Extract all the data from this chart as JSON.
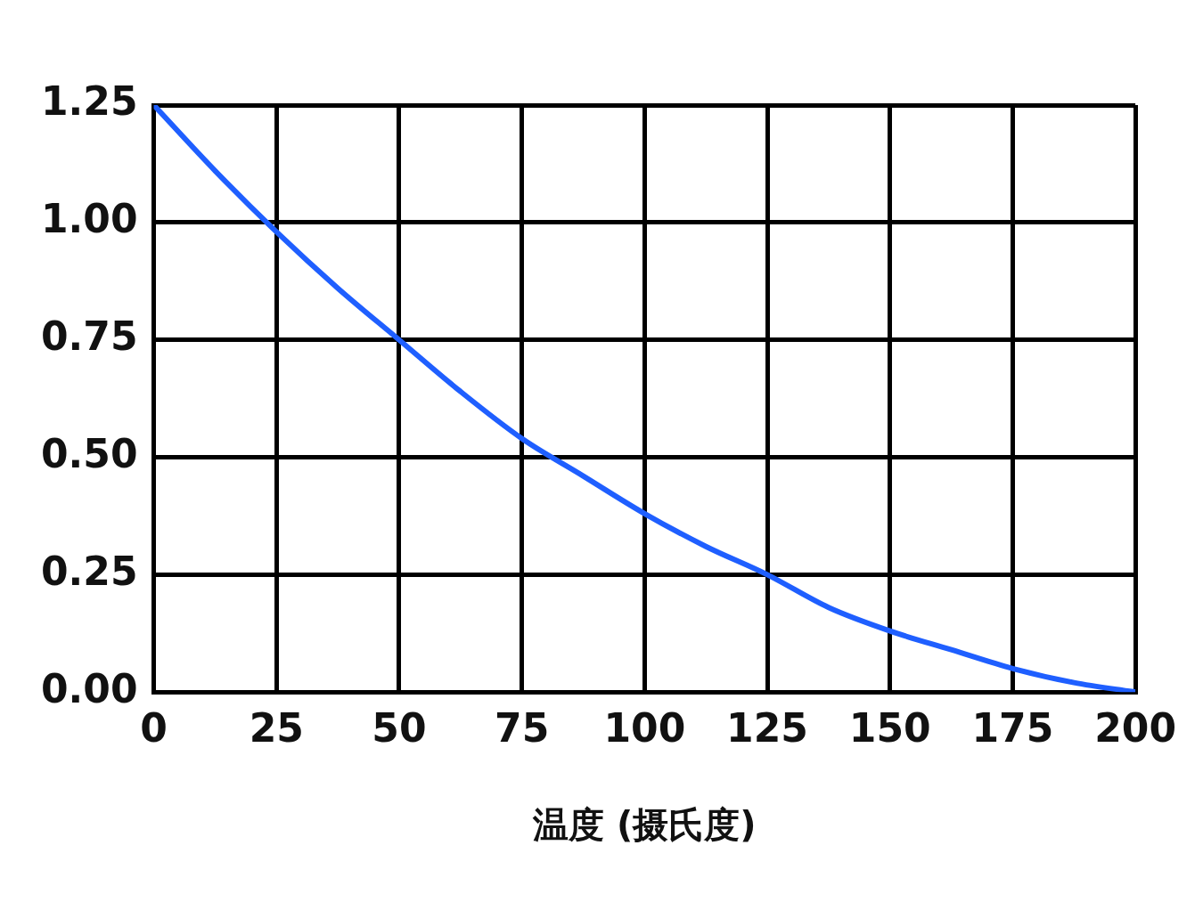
{
  "chart_data": {
    "type": "line",
    "xlabel": "温度 (摄氏度)",
    "x": [
      0,
      12.5,
      25,
      37.5,
      50,
      62.5,
      75,
      87.5,
      100,
      112.5,
      125,
      137.5,
      150,
      162.5,
      175,
      187.5,
      200
    ],
    "series": [
      {
        "color": "#1f5fff",
        "values": [
          1.25,
          1.11,
          0.98,
          0.86,
          0.75,
          0.64,
          0.54,
          0.46,
          0.38,
          0.31,
          0.25,
          0.18,
          0.13,
          0.09,
          0.05,
          0.02,
          0
        ]
      }
    ],
    "xlim": [
      0,
      200
    ],
    "xticks": [
      0,
      25,
      50,
      75,
      100,
      125,
      150,
      175,
      200
    ],
    "ylim": [
      0,
      1.25
    ],
    "yticks": [
      {
        "value": 0,
        "label": "0.00"
      },
      {
        "value": 0.25,
        "label": "0.25"
      },
      {
        "value": 0.5,
        "label": "0.50"
      },
      {
        "value": 0.75,
        "label": "0.75"
      },
      {
        "value": 1,
        "label": "1.00"
      },
      {
        "value": 1.25,
        "label": "1.25"
      }
    ],
    "grid": true,
    "legend": false,
    "marker": "none",
    "line_style": "solid"
  }
}
